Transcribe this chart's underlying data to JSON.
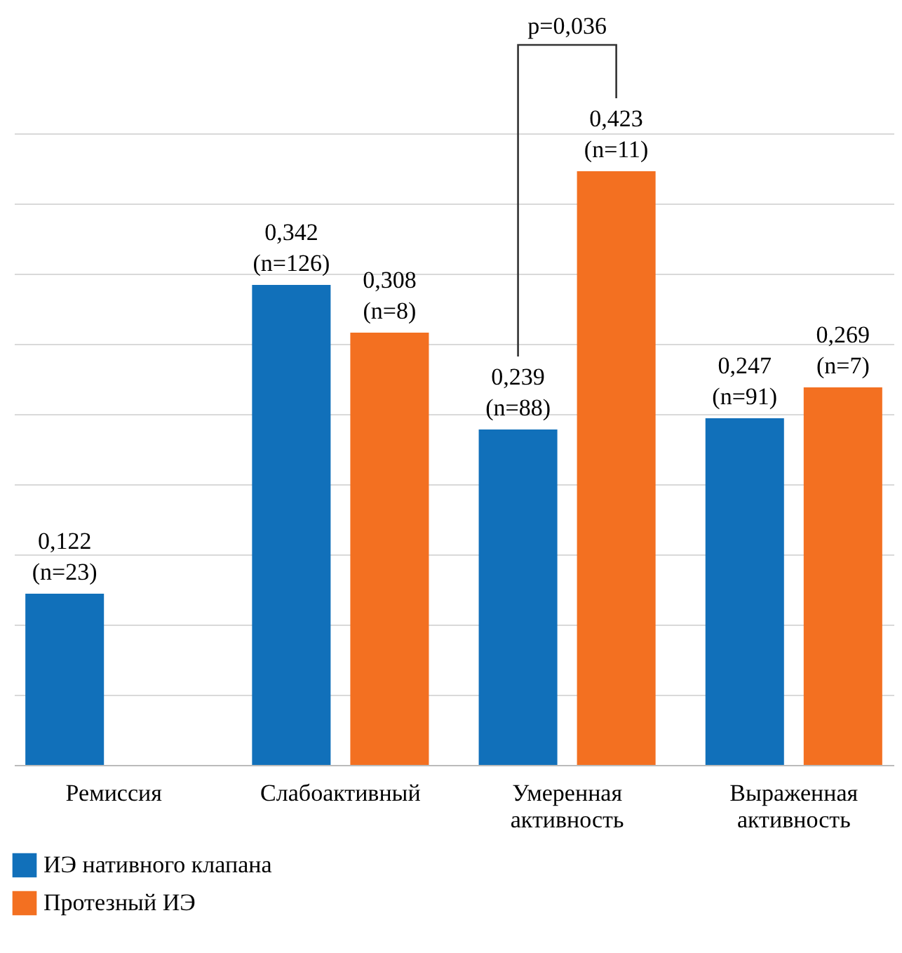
{
  "chart_data": {
    "type": "bar",
    "categories": [
      "Ремиссия",
      "Слабоактивный",
      "Умеренная активность",
      "Выраженная активность"
    ],
    "series": [
      {
        "name": "ИЭ нативного клапана",
        "color": "#1170ba",
        "values": [
          0.122,
          0.342,
          0.239,
          0.247
        ],
        "value_labels": [
          "0,122\n(n=23)",
          "0,342\n(n=126)",
          "0,239\n(n=88)",
          "0,247\n(n=91)"
        ]
      },
      {
        "name": "Протезный ИЭ",
        "color": "#f37021",
        "values": [
          null,
          0.308,
          0.423,
          0.269
        ],
        "value_labels": [
          null,
          "0,308\n(n=8)",
          "0,423\n(n=11)",
          "0,269\n(n=7)"
        ]
      }
    ],
    "ylim": [
      0,
      0.45
    ],
    "yticks": [
      {
        "value": 0,
        "label": null
      },
      {
        "value": 0.05,
        "label": null
      },
      {
        "value": 0.1,
        "label": null
      },
      {
        "value": 0.15,
        "label": null
      },
      {
        "value": 0.2,
        "label": null
      },
      {
        "value": 0.25,
        "label": null
      },
      {
        "value": 0.3,
        "label": null
      },
      {
        "value": 0.35,
        "label": null
      },
      {
        "value": 0.4,
        "label": null
      },
      {
        "value": 0.45,
        "label": null
      }
    ],
    "tick_labels": "x",
    "grid": "y",
    "legend": "bottom left",
    "annotations": [
      "p=0,036"
    ]
  }
}
